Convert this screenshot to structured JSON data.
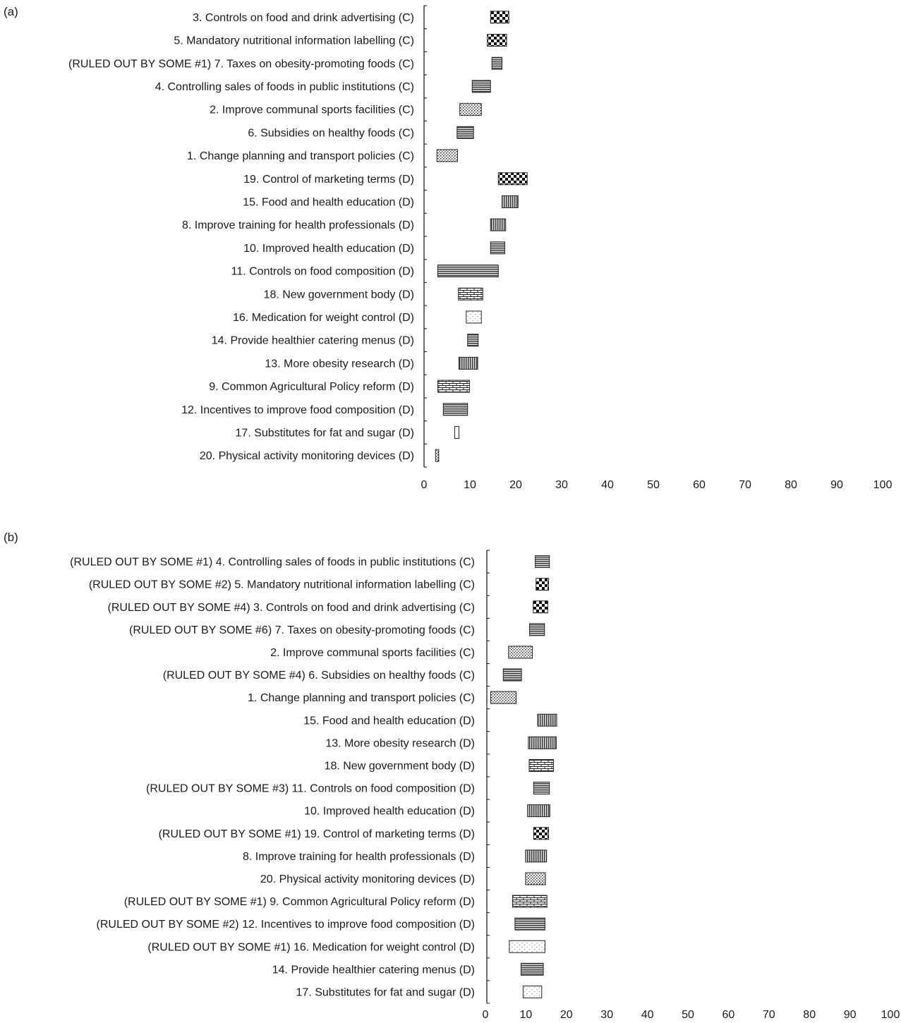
{
  "panels": [
    {
      "label": "(a)"
    },
    {
      "label": "(b)"
    }
  ],
  "chart_data": [
    {
      "type": "bar",
      "orientation": "horizontal-range",
      "panel": "(a)",
      "xlim": [
        0,
        100
      ],
      "xticks": [
        0,
        10,
        20,
        30,
        40,
        50,
        60,
        70,
        80,
        90,
        100
      ],
      "grid": false,
      "categories": [
        {
          "label": "3. Controls on food and drink advertising (C)",
          "range": [
            14.5,
            18.5
          ],
          "pattern": "checker"
        },
        {
          "label": "5. Mandatory nutritional information labelling (C)",
          "range": [
            13.8,
            18.0
          ],
          "pattern": "checker"
        },
        {
          "label": "(RULED OUT BY SOME #1) 7. Taxes on obesity-promoting foods (C)",
          "range": [
            14.8,
            17.0
          ],
          "pattern": "horizontal"
        },
        {
          "label": "4. Controlling sales of foods in public institutions (C)",
          "range": [
            10.5,
            14.5
          ],
          "pattern": "horizontal"
        },
        {
          "label": "2. Improve communal sports facilities (C)",
          "range": [
            7.8,
            12.5
          ],
          "pattern": "dots"
        },
        {
          "label": "6. Subsidies on healthy foods (C)",
          "range": [
            7.2,
            10.8
          ],
          "pattern": "horizontal"
        },
        {
          "label": "1. Change planning and transport policies (C)",
          "range": [
            2.8,
            7.3
          ],
          "pattern": "dots"
        },
        {
          "label": "19. Control of marketing terms (D)",
          "range": [
            16.2,
            22.5
          ],
          "pattern": "checker"
        },
        {
          "label": "15. Food and health education (D)",
          "range": [
            17.0,
            20.5
          ],
          "pattern": "vertical"
        },
        {
          "label": "8. Improve training for health professionals (D)",
          "range": [
            14.5,
            17.8
          ],
          "pattern": "vertical"
        },
        {
          "label": "10. Improved health education (D)",
          "range": [
            14.5,
            17.6
          ],
          "pattern": "horizontal"
        },
        {
          "label": "11. Controls on food composition (D)",
          "range": [
            3.0,
            16.2
          ],
          "pattern": "horizontal"
        },
        {
          "label": "18. New government body (D)",
          "range": [
            7.5,
            12.8
          ],
          "pattern": "brick"
        },
        {
          "label": "16. Medication for weight control (D)",
          "range": [
            9.2,
            12.5
          ],
          "pattern": "sparse-dots"
        },
        {
          "label": "14. Provide healthier catering menus (D)",
          "range": [
            9.5,
            11.8
          ],
          "pattern": "horizontal"
        },
        {
          "label": "13. More obesity research (D)",
          "range": [
            7.6,
            11.7
          ],
          "pattern": "vertical"
        },
        {
          "label": "9. Common Agricultural Policy reform (D)",
          "range": [
            3.0,
            9.9
          ],
          "pattern": "brick"
        },
        {
          "label": "12. Incentives to improve food composition (D)",
          "range": [
            4.2,
            9.5
          ],
          "pattern": "horizontal"
        },
        {
          "label": "17. Substitutes for fat and sugar (D)",
          "range": [
            6.7,
            7.6
          ],
          "pattern": "blank"
        },
        {
          "label": "20. Physical activity monitoring devices (D)",
          "range": [
            2.5,
            3.2
          ],
          "pattern": "dots"
        }
      ]
    },
    {
      "type": "bar",
      "orientation": "horizontal-range",
      "panel": "(b)",
      "xlim": [
        0,
        100
      ],
      "xticks": [
        0,
        10,
        20,
        30,
        40,
        50,
        60,
        70,
        80,
        90,
        100
      ],
      "grid": false,
      "categories": [
        {
          "label": "(RULED OUT BY SOME #1) 4. Controlling sales of foods in public institutions (C)",
          "range": [
            12.3,
            15.8
          ],
          "pattern": "horizontal"
        },
        {
          "label": "(RULED OUT BY SOME #2) 5. Mandatory nutritional information labelling (C)",
          "range": [
            12.5,
            15.6
          ],
          "pattern": "checker"
        },
        {
          "label": "(RULED OUT BY SOME #4) 3. Controls on food and drink advertising (C)",
          "range": [
            11.8,
            15.4
          ],
          "pattern": "checker"
        },
        {
          "label": "(RULED OUT BY SOME #6) 7. Taxes on obesity-promoting foods (C)",
          "range": [
            10.9,
            14.6
          ],
          "pattern": "horizontal"
        },
        {
          "label": "2. Improve communal sports facilities (C)",
          "range": [
            5.7,
            11.6
          ],
          "pattern": "dots"
        },
        {
          "label": "(RULED OUT BY SOME #4) 6. Subsidies on healthy foods (C)",
          "range": [
            4.4,
            8.9
          ],
          "pattern": "horizontal"
        },
        {
          "label": "1. Change planning and transport policies (C)",
          "range": [
            1.3,
            7.6
          ],
          "pattern": "dots"
        },
        {
          "label": "15. Food and health education (D)",
          "range": [
            12.9,
            17.6
          ],
          "pattern": "vertical"
        },
        {
          "label": "13. More obesity research (D)",
          "range": [
            10.6,
            17.5
          ],
          "pattern": "vertical"
        },
        {
          "label": "18. New government body (D)",
          "range": [
            10.8,
            16.8
          ],
          "pattern": "brick"
        },
        {
          "label": "(RULED OUT BY SOME #3) 11. Controls on food composition (D)",
          "range": [
            11.9,
            15.8
          ],
          "pattern": "horizontal"
        },
        {
          "label": "10. Improved health education (D)",
          "range": [
            10.4,
            15.9
          ],
          "pattern": "vertical"
        },
        {
          "label": "(RULED OUT BY SOME #1) 19. Control of marketing terms (D)",
          "range": [
            11.9,
            15.6
          ],
          "pattern": "checker"
        },
        {
          "label": "8. Improve training for health professionals (D)",
          "range": [
            9.9,
            15.1
          ],
          "pattern": "vertical"
        },
        {
          "label": "20. Physical activity monitoring devices (D)",
          "range": [
            9.9,
            14.8
          ],
          "pattern": "dots"
        },
        {
          "label": "(RULED OUT BY SOME #1) 9. Common Agricultural Policy reform (D)",
          "range": [
            6.7,
            15.2
          ],
          "pattern": "brick"
        },
        {
          "label": "(RULED OUT BY SOME #2) 12. Incentives to improve food composition (D)",
          "range": [
            7.3,
            14.7
          ],
          "pattern": "horizontal"
        },
        {
          "label": "(RULED OUT BY SOME #1) 16. Medication for weight control (D)",
          "range": [
            5.9,
            14.7
          ],
          "pattern": "sparse-dots"
        },
        {
          "label": "14. Provide healthier catering menus (D)",
          "range": [
            8.8,
            14.3
          ],
          "pattern": "horizontal"
        },
        {
          "label": "17. Substitutes for fat and sugar (D)",
          "range": [
            9.3,
            13.9
          ],
          "pattern": "sparse-dots"
        }
      ]
    }
  ]
}
